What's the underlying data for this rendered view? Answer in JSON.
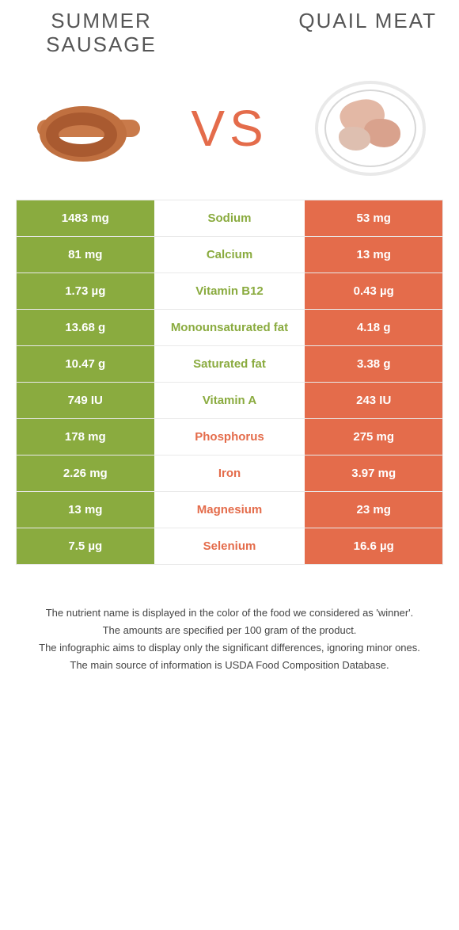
{
  "title_left": "Summer sausage",
  "title_right": "Quail meat",
  "vs": "VS",
  "colors": {
    "left": "#8aab3f",
    "right": "#e46c4b",
    "left_text": "#8aab3f",
    "right_text": "#e46c4b"
  },
  "rows": [
    {
      "left": "1483 mg",
      "label": "Sodium",
      "right": "53 mg",
      "winner": "left"
    },
    {
      "left": "81 mg",
      "label": "Calcium",
      "right": "13 mg",
      "winner": "left"
    },
    {
      "left": "1.73 µg",
      "label": "Vitamin B12",
      "right": "0.43 µg",
      "winner": "left"
    },
    {
      "left": "13.68 g",
      "label": "Monounsaturated fat",
      "right": "4.18 g",
      "winner": "left"
    },
    {
      "left": "10.47 g",
      "label": "Saturated fat",
      "right": "3.38 g",
      "winner": "left"
    },
    {
      "left": "749 IU",
      "label": "Vitamin A",
      "right": "243 IU",
      "winner": "left"
    },
    {
      "left": "178 mg",
      "label": "Phosphorus",
      "right": "275 mg",
      "winner": "right"
    },
    {
      "left": "2.26 mg",
      "label": "Iron",
      "right": "3.97 mg",
      "winner": "right"
    },
    {
      "left": "13 mg",
      "label": "Magnesium",
      "right": "23 mg",
      "winner": "right"
    },
    {
      "left": "7.5 µg",
      "label": "Selenium",
      "right": "16.6 µg",
      "winner": "right"
    }
  ],
  "footer": [
    "The nutrient name is displayed in the color of the food we considered as 'winner'.",
    "The amounts are specified per 100 gram of the product.",
    "The infographic aims to display only the significant differences, ignoring minor ones.",
    "The main source of information is USDA Food Composition Database."
  ]
}
